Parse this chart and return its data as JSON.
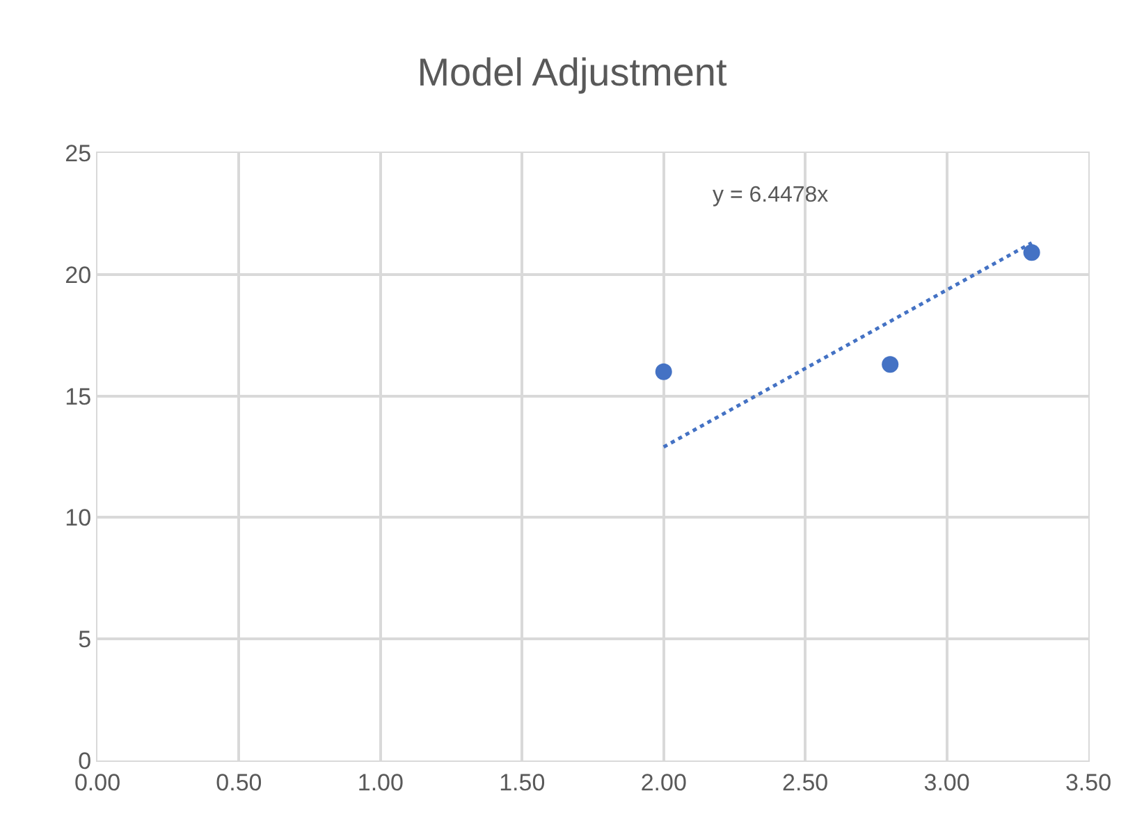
{
  "chart_data": {
    "type": "scatter",
    "title": "Model Adjustment",
    "series": [
      {
        "color": "#4472c4",
        "x": [
          2.0,
          2.8,
          3.3
        ],
        "values": [
          16.0,
          16.3,
          20.9
        ],
        "marker": "circle"
      },
      {
        "type": "line",
        "color": "#4472c4",
        "x": [
          2.0,
          3.3
        ],
        "values": [
          12.9,
          21.3
        ],
        "line_style": "dotted",
        "marker": "none"
      }
    ],
    "annotations": [
      "y = 6.4478x"
    ],
    "xlim": [
      0,
      3.5
    ],
    "xticks": [
      {
        "value": 0,
        "label": "0.00"
      },
      {
        "value": 0.5,
        "label": "0.50"
      },
      {
        "value": 1,
        "label": "1.00"
      },
      {
        "value": 1.5,
        "label": "1.50"
      },
      {
        "value": 2,
        "label": "2.00"
      },
      {
        "value": 2.5,
        "label": "2.50"
      },
      {
        "value": 3,
        "label": "3.00"
      },
      {
        "value": 3.5,
        "label": "3.50"
      }
    ],
    "ylim": [
      0,
      25
    ],
    "yticks": [
      0,
      5,
      10,
      15,
      20,
      25
    ],
    "grid": true
  }
}
